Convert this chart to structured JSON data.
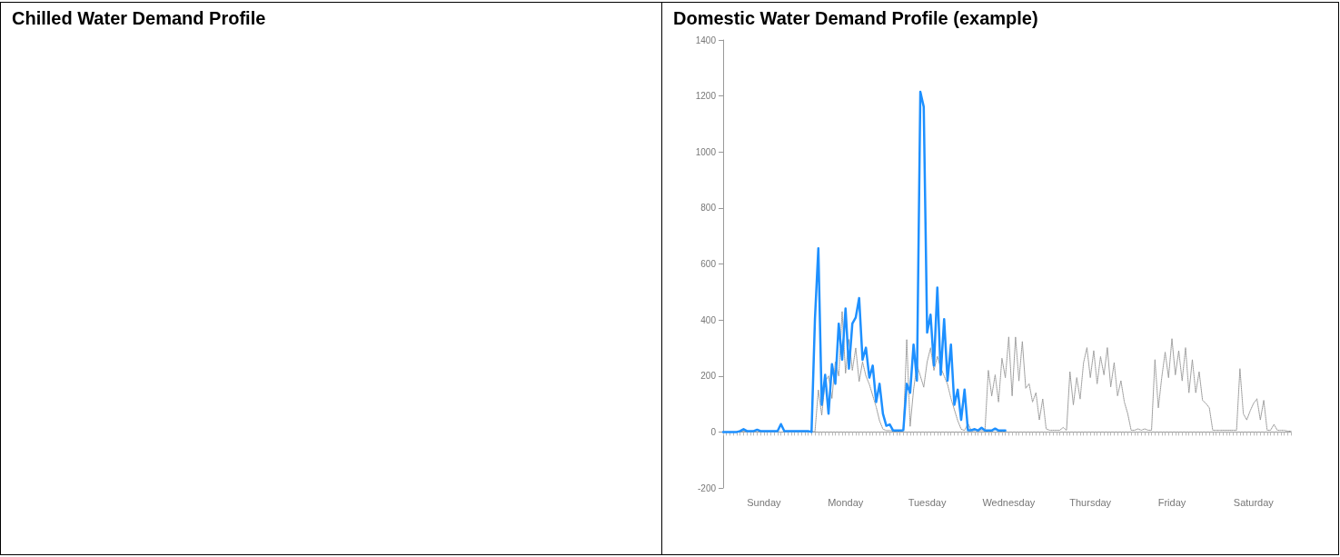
{
  "chart_data": [
    {
      "type": "other",
      "title": "Chilled Water Demand Profile"
    },
    {
      "type": "line",
      "title": "Domestic Water Demand Profile (example)",
      "marker": "none",
      "categories": [
        null,
        null,
        null,
        null,
        null,
        null,
        null,
        null,
        null,
        null,
        null,
        null,
        "Sunday",
        null,
        null,
        null,
        null,
        null,
        null,
        null,
        null,
        null,
        null,
        null,
        null,
        null,
        null,
        null,
        null,
        null,
        null,
        null,
        null,
        null,
        null,
        null,
        "Monday",
        null,
        null,
        null,
        null,
        null,
        null,
        null,
        null,
        null,
        null,
        null,
        null,
        null,
        null,
        null,
        null,
        null,
        null,
        null,
        null,
        null,
        null,
        null,
        "Tuesday",
        null,
        null,
        null,
        null,
        null,
        null,
        null,
        null,
        null,
        null,
        null,
        null,
        null,
        null,
        null,
        null,
        null,
        null,
        null,
        null,
        null,
        null,
        null,
        "Wednesday",
        null,
        null,
        null,
        null,
        null,
        null,
        null,
        null,
        null,
        null,
        null,
        null,
        null,
        null,
        null,
        null,
        null,
        null,
        null,
        null,
        null,
        null,
        null,
        "Thursday",
        null,
        null,
        null,
        null,
        null,
        null,
        null,
        null,
        null,
        null,
        null,
        null,
        null,
        null,
        null,
        null,
        null,
        null,
        null,
        null,
        null,
        null,
        null,
        "Friday",
        null,
        null,
        null,
        null,
        null,
        null,
        null,
        null,
        null,
        null,
        null,
        null,
        null,
        null,
        null,
        null,
        null,
        null,
        null,
        null,
        null,
        null,
        null,
        "Saturday",
        null,
        null,
        null,
        null,
        null,
        null,
        null,
        null,
        null,
        null,
        null
      ],
      "ylim": [
        -200,
        1400
      ],
      "yticks": [
        -200,
        0,
        200,
        400,
        600,
        800,
        1000,
        1200,
        1400
      ],
      "series": [
        {
          "color": "#999999",
          "line_style": "dotted",
          "values": [
            0,
            0,
            0,
            0,
            0,
            3,
            3,
            3,
            3,
            3,
            5,
            3,
            3,
            3,
            3,
            3,
            3,
            25,
            3,
            3,
            3,
            3,
            3,
            3,
            3,
            3,
            3,
            0,
            150,
            60,
            180,
            200,
            120,
            250,
            200,
            430,
            210,
            330,
            220,
            300,
            180,
            250,
            200,
            170,
            130,
            90,
            40,
            10,
            5,
            5,
            5,
            5,
            5,
            5,
            330,
            20,
            150,
            240,
            200,
            160,
            250,
            300,
            220,
            270,
            230,
            200,
            170,
            120,
            80,
            40,
            10,
            5,
            30,
            5,
            5,
            5,
            5,
            5,
            220,
            129,
            204,
            107,
            263,
            194,
            339,
            129,
            339,
            183,
            323,
            156,
            172,
            107,
            140,
            43,
            118,
            11,
            6,
            6,
            6,
            6,
            16,
            6,
            215,
            97,
            194,
            118,
            247,
            301,
            194,
            290,
            172,
            269,
            204,
            301,
            161,
            247,
            129,
            183,
            107,
            65,
            6,
            6,
            11,
            6,
            11,
            6,
            6,
            258,
            86,
            194,
            285,
            194,
            333,
            204,
            290,
            183,
            301,
            140,
            258,
            140,
            215,
            113,
            102,
            86,
            6,
            6,
            6,
            6,
            6,
            6,
            6,
            6,
            226,
            65,
            43,
            75,
            102,
            118,
            43,
            113,
            6,
            6,
            27,
            6,
            6,
            6,
            3,
            3
          ]
        },
        {
          "color": "#1e90ff",
          "line_style": "solid",
          "values": [
            0,
            0,
            0,
            0,
            0,
            3,
            10,
            3,
            3,
            3,
            8,
            3,
            3,
            3,
            3,
            3,
            3,
            28,
            3,
            3,
            3,
            3,
            3,
            3,
            3,
            3,
            0,
            403,
            656,
            97,
            204,
            65,
            242,
            172,
            387,
            258,
            441,
            226,
            387,
            409,
            478,
            258,
            301,
            194,
            237,
            107,
            172,
            65,
            22,
            27,
            5,
            5,
            5,
            6,
            172,
            140,
            312,
            183,
            1215,
            1161,
            355,
            419,
            237,
            516,
            204,
            403,
            183,
            312,
            97,
            151,
            43,
            151,
            6,
            6,
            10,
            5,
            15,
            5,
            5,
            5,
            12,
            5,
            5,
            5,
            null,
            null,
            null,
            null,
            null,
            null,
            null,
            null,
            null,
            null,
            null,
            null,
            null,
            null,
            null,
            null,
            null,
            null,
            null,
            null,
            null,
            null,
            null,
            null,
            null,
            null,
            null,
            null,
            null,
            null,
            null,
            null,
            null,
            null,
            null,
            null,
            null,
            null,
            null,
            null,
            null,
            null,
            null,
            null,
            null,
            null,
            null,
            null,
            null,
            null,
            null,
            null,
            null,
            null,
            null,
            null,
            null,
            null,
            null,
            null,
            null,
            null,
            null,
            null,
            null,
            null,
            null,
            null,
            null,
            null,
            null,
            null,
            null,
            null,
            null,
            null,
            null,
            null,
            null,
            null,
            null,
            null,
            null,
            null
          ]
        }
      ]
    }
  ]
}
